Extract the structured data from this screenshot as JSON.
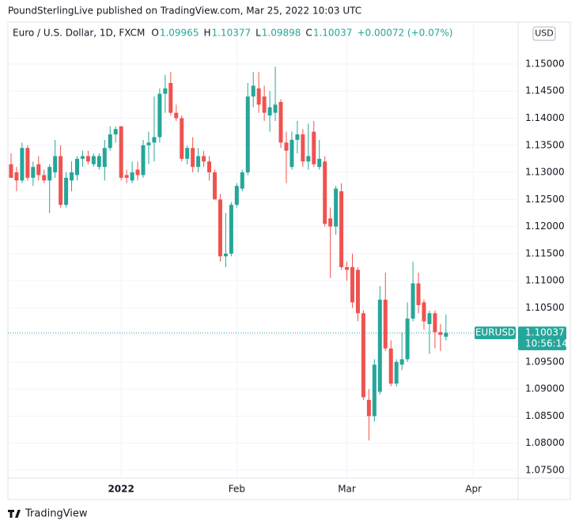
{
  "header": {
    "publisher": "PoundSterlingLive published on TradingView.com, Mar 25, 2022 10:03 UTC"
  },
  "chart_data": {
    "type": "candlestick",
    "title": "Euro / U.S. Dollar, 1D, FXCM",
    "legend_letters": [
      "O",
      "H",
      "L",
      "C"
    ],
    "change": "+0.00072 (+0.07%)",
    "currency": "USD",
    "symbol": "EURUSD",
    "countdown": "10:56:14",
    "up_color": "#26a69a",
    "down_color": "#ef5350",
    "open": [
      1.1315,
      1.13,
      1.1285,
      1.1345,
      1.129,
      1.1315,
      1.1295,
      1.1285,
      1.13,
      1.133,
      1.124,
      1.1285,
      1.1295,
      1.1325,
      1.133,
      1.1315,
      1.131,
      1.131,
      1.1345,
      1.137,
      1.1385,
      1.1295,
      1.1285,
      1.1305,
      1.1295,
      1.135,
      1.1355,
      1.1365,
      1.1445,
      1.1465,
      1.141,
      1.14,
      1.1325,
      1.1345,
      1.131,
      1.133,
      1.132,
      1.13,
      1.125,
      1.1145,
      1.115,
      1.124,
      1.127,
      1.13,
      1.144,
      1.1455,
      1.144,
      1.1405,
      1.141,
      1.143,
      1.1355,
      1.131,
      1.136,
      1.137,
      1.132,
      1.1375,
      1.131,
      1.132,
      1.1215,
      1.12,
      1.1265,
      1.1125,
      1.1125,
      1.112,
      1.104,
      1.088,
      1.085,
      1.0895,
      1.1065,
      1.0975,
      1.091,
      1.0945,
      1.0955,
      1.103,
      1.1095,
      1.106,
      1.102,
      1.104,
      1.1005,
      1.09965
    ],
    "high": [
      1.1335,
      1.131,
      1.1355,
      1.135,
      1.132,
      1.133,
      1.1305,
      1.1315,
      1.136,
      1.135,
      1.13,
      1.132,
      1.133,
      1.134,
      1.134,
      1.1335,
      1.1335,
      1.136,
      1.1385,
      1.1385,
      1.1385,
      1.1305,
      1.132,
      1.132,
      1.136,
      1.1375,
      1.144,
      1.1455,
      1.148,
      1.1485,
      1.1425,
      1.1405,
      1.135,
      1.1365,
      1.1345,
      1.134,
      1.133,
      1.1305,
      1.126,
      1.1225,
      1.1245,
      1.128,
      1.1305,
      1.1465,
      1.1485,
      1.1485,
      1.146,
      1.145,
      1.1495,
      1.1435,
      1.1375,
      1.1375,
      1.1395,
      1.138,
      1.139,
      1.1395,
      1.136,
      1.133,
      1.1235,
      1.1275,
      1.128,
      1.1135,
      1.115,
      1.1125,
      1.1045,
      1.09,
      1.0955,
      1.109,
      1.1115,
      1.099,
      1.0955,
      1.1005,
      1.106,
      1.1135,
      1.1115,
      1.1065,
      1.1045,
      1.1045,
      1.102,
      1.10377
    ],
    "low": [
      1.129,
      1.1265,
      1.128,
      1.1285,
      1.1275,
      1.1285,
      1.128,
      1.1225,
      1.129,
      1.1235,
      1.1235,
      1.1265,
      1.1285,
      1.131,
      1.1315,
      1.131,
      1.1305,
      1.1285,
      1.134,
      1.1355,
      1.1285,
      1.128,
      1.128,
      1.1285,
      1.129,
      1.1315,
      1.132,
      1.1355,
      1.141,
      1.1405,
      1.1395,
      1.132,
      1.1315,
      1.13,
      1.13,
      1.131,
      1.1285,
      1.125,
      1.1135,
      1.1125,
      1.1145,
      1.1235,
      1.1265,
      1.1295,
      1.142,
      1.141,
      1.1395,
      1.1375,
      1.1395,
      1.1345,
      1.128,
      1.1305,
      1.1335,
      1.131,
      1.1305,
      1.131,
      1.1305,
      1.12,
      1.1105,
      1.1185,
      1.112,
      1.11,
      1.105,
      1.1025,
      1.088,
      1.0805,
      1.084,
      1.089,
      1.097,
      1.0905,
      1.0905,
      1.0935,
      1.095,
      1.1025,
      1.104,
      1.101,
      1.0965,
      1.0975,
      1.097,
      1.09898
    ],
    "close": [
      1.129,
      1.1285,
      1.1345,
      1.129,
      1.131,
      1.1295,
      1.1285,
      1.131,
      1.133,
      1.124,
      1.129,
      1.13,
      1.1325,
      1.133,
      1.132,
      1.133,
      1.133,
      1.1345,
      1.137,
      1.138,
      1.129,
      1.129,
      1.13,
      1.1295,
      1.135,
      1.1355,
      1.1365,
      1.1445,
      1.1455,
      1.141,
      1.14,
      1.1325,
      1.1345,
      1.131,
      1.133,
      1.132,
      1.13,
      1.125,
      1.1145,
      1.115,
      1.124,
      1.1275,
      1.13,
      1.144,
      1.146,
      1.1425,
      1.141,
      1.142,
      1.1425,
      1.1355,
      1.134,
      1.136,
      1.137,
      1.132,
      1.133,
      1.1315,
      1.1325,
      1.1205,
      1.12,
      1.127,
      1.1125,
      1.112,
      1.106,
      1.104,
      1.0885,
      1.085,
      1.0945,
      1.1065,
      1.0975,
      1.091,
      1.095,
      1.0955,
      1.103,
      1.1095,
      1.1055,
      1.1025,
      1.104,
      1.1005,
      1.1,
      1.10037
    ],
    "xlim": [
      -0.57,
      92.1
    ],
    "xticks": [
      {
        "value": 20,
        "label": "2022"
      },
      {
        "value": 41,
        "label": "Feb"
      },
      {
        "value": 61,
        "label": "Mar"
      },
      {
        "value": 84,
        "label": "Apr"
      }
    ],
    "ylim": [
      1.07354,
      1.15773
    ],
    "yticks": [
      {
        "value": 1.075,
        "label": "1.07500"
      },
      {
        "value": 1.08,
        "label": "1.08000"
      },
      {
        "value": 1.085,
        "label": "1.08500"
      },
      {
        "value": 1.09,
        "label": "1.09000"
      },
      {
        "value": 1.095,
        "label": "1.09500"
      },
      {
        "value": 1.1,
        "label": "1.10000"
      },
      {
        "value": 1.105,
        "label": "1.10500"
      },
      {
        "value": 1.11,
        "label": "1.11000"
      },
      {
        "value": 1.115,
        "label": "1.11500"
      },
      {
        "value": 1.12,
        "label": "1.12000"
      },
      {
        "value": 1.125,
        "label": "1.12500"
      },
      {
        "value": 1.13,
        "label": "1.13000"
      },
      {
        "value": 1.135,
        "label": "1.13500"
      },
      {
        "value": 1.14,
        "label": "1.14000"
      },
      {
        "value": 1.145,
        "label": "1.14500"
      },
      {
        "value": 1.15,
        "label": "1.15000"
      }
    ],
    "grid": true
  },
  "footer": {
    "brand": "TradingView"
  }
}
